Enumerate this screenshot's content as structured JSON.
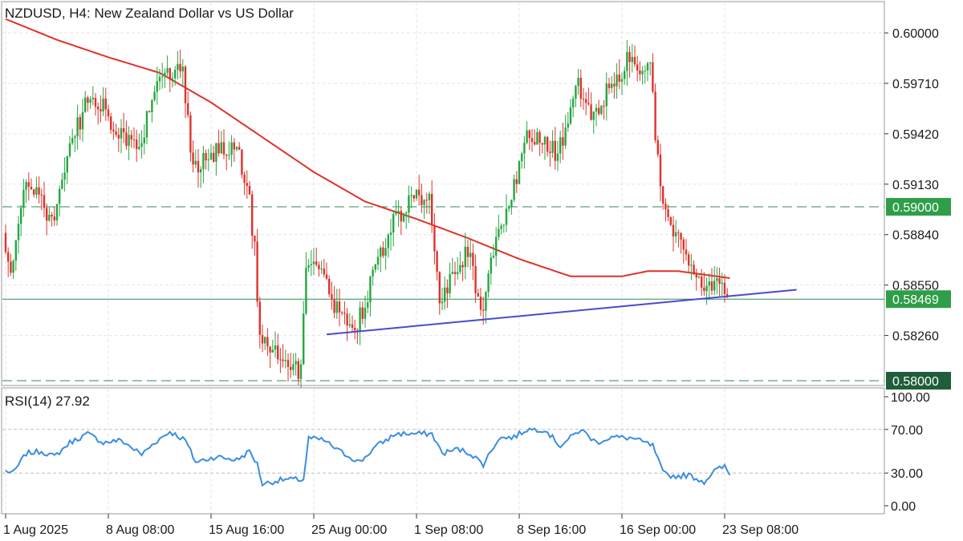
{
  "header": {
    "title": "NZDUSD, H4:  New Zealand Dollar vs US Dollar"
  },
  "rsi_panel": {
    "label": "RSI(14) 27.92"
  },
  "colors": {
    "bull": "#26a641",
    "bear": "#e0312a",
    "ma": "#e0312a",
    "trendline": "#4a4ad0",
    "rsi": "#3b8de0",
    "level_dashed": "#2e8b57",
    "current_price_line": "#2e8b57",
    "badge_green": "#2e9e48",
    "badge_dark": "#1f5e3a",
    "grid": "#e6e6e6"
  },
  "chart_data": [
    {
      "type": "candlestick",
      "title": "NZDUSD, H4:  New Zealand Dollar vs US Dollar",
      "y_ticks": [
        "0.60000",
        "0.59710",
        "0.59420",
        "0.59130",
        "0.58840",
        "0.58550",
        "0.58260"
      ],
      "ylim": [
        0.58,
        0.6012
      ],
      "x_ticks": [
        "1 Aug 2025",
        "8 Aug 08:00",
        "15 Aug 16:00",
        "25 Aug 00:00",
        "1 Sep 08:00",
        "8 Sep 16:00",
        "16 Sep 00:00",
        "23 Sep 08:00"
      ],
      "x_tick_index": [
        0,
        40,
        80,
        120,
        160,
        200,
        240,
        280
      ],
      "bar_count": 282,
      "price_levels": [
        {
          "label": "0.59000",
          "value": 0.59,
          "style": "dashed"
        },
        {
          "label": "0.58469",
          "value": 0.58469,
          "style": "solid"
        },
        {
          "label": "0.58000",
          "value": 0.58,
          "style": "dashed"
        }
      ],
      "anchors": [
        {
          "i": 0,
          "p": 0.5885
        },
        {
          "i": 3,
          "p": 0.586
        },
        {
          "i": 8,
          "p": 0.5915
        },
        {
          "i": 14,
          "p": 0.5905
        },
        {
          "i": 19,
          "p": 0.589
        },
        {
          "i": 25,
          "p": 0.593
        },
        {
          "i": 32,
          "p": 0.5958
        },
        {
          "i": 38,
          "p": 0.596
        },
        {
          "i": 45,
          "p": 0.594
        },
        {
          "i": 53,
          "p": 0.5935
        },
        {
          "i": 58,
          "p": 0.596
        },
        {
          "i": 64,
          "p": 0.598
        },
        {
          "i": 70,
          "p": 0.5975
        },
        {
          "i": 74,
          "p": 0.592
        },
        {
          "i": 82,
          "p": 0.593
        },
        {
          "i": 90,
          "p": 0.5935
        },
        {
          "i": 95,
          "p": 0.5915
        },
        {
          "i": 98,
          "p": 0.5875
        },
        {
          "i": 100,
          "p": 0.5825
        },
        {
          "i": 108,
          "p": 0.5815
        },
        {
          "i": 116,
          "p": 0.5805
        },
        {
          "i": 118,
          "p": 0.5868
        },
        {
          "i": 124,
          "p": 0.5865
        },
        {
          "i": 130,
          "p": 0.584
        },
        {
          "i": 138,
          "p": 0.5832
        },
        {
          "i": 144,
          "p": 0.586
        },
        {
          "i": 152,
          "p": 0.589
        },
        {
          "i": 160,
          "p": 0.5905
        },
        {
          "i": 166,
          "p": 0.5905
        },
        {
          "i": 170,
          "p": 0.5843
        },
        {
          "i": 176,
          "p": 0.5862
        },
        {
          "i": 181,
          "p": 0.5875
        },
        {
          "i": 186,
          "p": 0.5838
        },
        {
          "i": 192,
          "p": 0.588
        },
        {
          "i": 198,
          "p": 0.5905
        },
        {
          "i": 203,
          "p": 0.594
        },
        {
          "i": 210,
          "p": 0.5938
        },
        {
          "i": 216,
          "p": 0.593
        },
        {
          "i": 224,
          "p": 0.597
        },
        {
          "i": 230,
          "p": 0.595
        },
        {
          "i": 236,
          "p": 0.597
        },
        {
          "i": 244,
          "p": 0.5985
        },
        {
          "i": 252,
          "p": 0.5978
        },
        {
          "i": 256,
          "p": 0.591
        },
        {
          "i": 260,
          "p": 0.589
        },
        {
          "i": 266,
          "p": 0.5875
        },
        {
          "i": 272,
          "p": 0.5858
        },
        {
          "i": 276,
          "p": 0.5852
        },
        {
          "i": 280,
          "p": 0.586
        },
        {
          "i": 282,
          "p": 0.5847
        }
      ],
      "moving_average": [
        {
          "i": 0,
          "p": 0.6008
        },
        {
          "i": 20,
          "p": 0.5996
        },
        {
          "i": 40,
          "p": 0.5986
        },
        {
          "i": 60,
          "p": 0.5977
        },
        {
          "i": 80,
          "p": 0.596
        },
        {
          "i": 100,
          "p": 0.594
        },
        {
          "i": 120,
          "p": 0.592
        },
        {
          "i": 140,
          "p": 0.5903
        },
        {
          "i": 160,
          "p": 0.5893
        },
        {
          "i": 180,
          "p": 0.5882
        },
        {
          "i": 200,
          "p": 0.587
        },
        {
          "i": 220,
          "p": 0.586
        },
        {
          "i": 240,
          "p": 0.586
        },
        {
          "i": 250,
          "p": 0.5863
        },
        {
          "i": 262,
          "p": 0.5863
        },
        {
          "i": 282,
          "p": 0.5859
        }
      ],
      "trendline": [
        {
          "i": 125,
          "p": 0.58266
        },
        {
          "i": 308,
          "p": 0.58523
        }
      ]
    },
    {
      "type": "line",
      "title": "RSI(14) 27.92",
      "y_ticks": [
        "100.00",
        "70.00",
        "30.00",
        "0.00"
      ],
      "ylim": [
        0,
        100
      ],
      "series": [
        {
          "name": "RSI(14)",
          "x": [
            0,
            3,
            8,
            14,
            19,
            25,
            32,
            38,
            45,
            53,
            58,
            64,
            70,
            74,
            82,
            90,
            95,
            98,
            100,
            108,
            116,
            118,
            124,
            130,
            138,
            144,
            152,
            160,
            166,
            170,
            176,
            181,
            186,
            192,
            198,
            203,
            210,
            216,
            224,
            230,
            236,
            244,
            252,
            256,
            260,
            266,
            272,
            276,
            280,
            282
          ],
          "values": [
            32,
            30,
            48,
            50,
            45,
            58,
            66,
            58,
            60,
            47,
            58,
            68,
            60,
            40,
            45,
            42,
            50,
            38,
            20,
            24,
            24,
            62,
            60,
            50,
            40,
            54,
            66,
            66,
            66,
            48,
            52,
            48,
            38,
            62,
            63,
            70,
            70,
            55,
            70,
            58,
            63,
            62,
            55,
            30,
            27,
            28,
            22,
            32,
            36,
            28
          ]
        }
      ],
      "levels": [
        70,
        30
      ]
    }
  ]
}
